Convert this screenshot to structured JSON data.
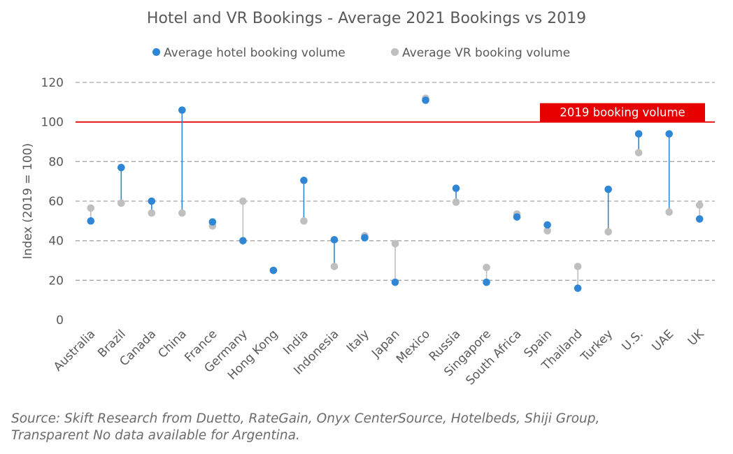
{
  "chart_data": {
    "type": "dumbbell",
    "title": "Hotel and VR Bookings - Average 2021 Bookings vs 2019",
    "ylabel": "Index (2019 = 100)",
    "ylim": [
      0,
      120
    ],
    "yticks": [
      "0",
      "20",
      "40",
      "60",
      "80",
      "100",
      "120"
    ],
    "grid": true,
    "legend_position": "top",
    "reference_line": {
      "value": 100,
      "label": "2019 booking volume",
      "color": "#E60000"
    },
    "categories": [
      "Australia",
      "Brazil",
      "Canada",
      "China",
      "France",
      "Germany",
      "Hong Kong",
      "India",
      "Indonesia",
      "Italy",
      "Japan",
      "Mexico",
      "Russia",
      "Singapore",
      "South Africa",
      "Spain",
      "Thailand",
      "Turkey",
      "U.S.",
      "UAE",
      "UK"
    ],
    "series": [
      {
        "name": "Average hotel booking volume",
        "color": "#2E86D4",
        "values": [
          50,
          77,
          60,
          106,
          49.5,
          40,
          25,
          70.5,
          40.5,
          41.5,
          19,
          111,
          66.5,
          19,
          52,
          48,
          16,
          66,
          94,
          94,
          51
        ]
      },
      {
        "name": "Average VR booking volume",
        "color": "#BFBFBF",
        "values": [
          56.5,
          59,
          54,
          54,
          47.5,
          60,
          25,
          50,
          27,
          42.5,
          38.5,
          112,
          59.5,
          26.5,
          53.5,
          45,
          27,
          44.5,
          84.5,
          54.5,
          58
        ]
      }
    ]
  },
  "source_line1": "Source: Skift Research from Duetto, RateGain, Onyx CenterSource, Hotelbeds, Shiji Group,",
  "source_line2": "Transparent No data available for Argentina."
}
